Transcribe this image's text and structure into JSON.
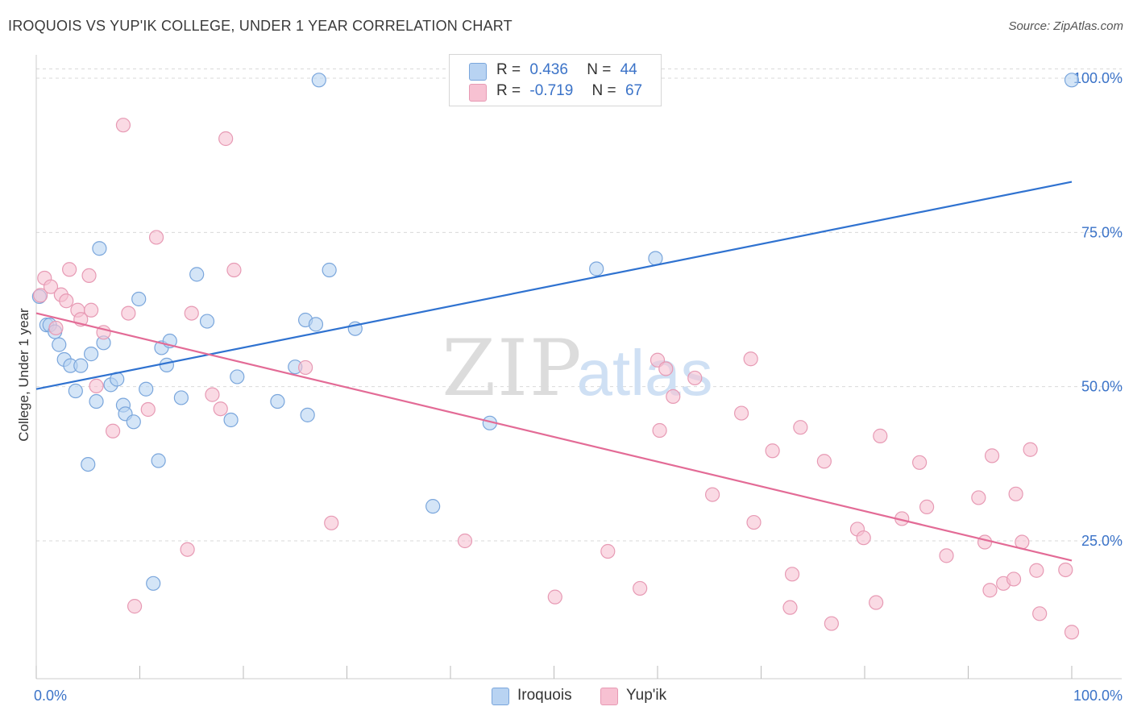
{
  "title": "IROQUOIS VS YUP'IK COLLEGE, UNDER 1 YEAR CORRELATION CHART",
  "source": "Source: ZipAtlas.com",
  "watermark": {
    "zip": "ZIP",
    "atlas": "atlas"
  },
  "legend": {
    "rows": [
      {
        "r_label": "R =",
        "r_value": "0.436",
        "n_label": "N =",
        "n_value": "44"
      },
      {
        "r_label": "R =",
        "r_value": "-0.719",
        "n_label": "N =",
        "n_value": "67"
      }
    ]
  },
  "colors": {
    "iroquois_fill": "#b8d3f2",
    "iroquois_line": "#2f72d0",
    "yupik_fill": "#f7c1d2",
    "yupik_line": "#e36b96",
    "axis_text": "#3b73c8",
    "grid": "#d9d9d9"
  },
  "chart_data": {
    "type": "scatter",
    "title": "IROQUOIS VS YUP'IK COLLEGE, UNDER 1 YEAR CORRELATION CHART",
    "xlabel": "",
    "ylabel": "College, Under 1 year",
    "xlim": [
      0,
      100
    ],
    "ylim": [
      0,
      102
    ],
    "x_tick_labels": [
      "0.0%",
      "100.0%"
    ],
    "y_ticks": [
      {
        "value": 25,
        "label": "25.0%"
      },
      {
        "value": 50,
        "label": "50.0%"
      },
      {
        "value": 75,
        "label": "75.0%"
      },
      {
        "value": 100,
        "label": "100.0%"
      }
    ],
    "grid": true,
    "legend_position": "bottom-center",
    "series": [
      {
        "name": "Iroquois",
        "color": "#b8d3f2",
        "edge": "#7aa6dc",
        "trend": {
          "x0": 0,
          "y0": 49.6,
          "x1": 100,
          "y1": 83.2,
          "color": "#2f72d0"
        },
        "points": [
          [
            0.3,
            64.6
          ],
          [
            1.0,
            60.0
          ],
          [
            1.3,
            60.0
          ],
          [
            1.8,
            58.9
          ],
          [
            2.2,
            56.8
          ],
          [
            2.7,
            54.4
          ],
          [
            3.3,
            53.4
          ],
          [
            3.8,
            49.3
          ],
          [
            4.3,
            53.4
          ],
          [
            5.0,
            37.4
          ],
          [
            5.3,
            55.3
          ],
          [
            5.8,
            47.6
          ],
          [
            6.1,
            72.4
          ],
          [
            6.5,
            57.1
          ],
          [
            7.2,
            50.3
          ],
          [
            7.8,
            51.2
          ],
          [
            8.4,
            47.0
          ],
          [
            8.6,
            45.6
          ],
          [
            9.4,
            44.3
          ],
          [
            9.9,
            64.2
          ],
          [
            10.6,
            49.6
          ],
          [
            11.3,
            18.1
          ],
          [
            11.8,
            38.0
          ],
          [
            12.1,
            56.3
          ],
          [
            12.6,
            53.5
          ],
          [
            12.9,
            57.4
          ],
          [
            14.0,
            48.2
          ],
          [
            15.5,
            68.2
          ],
          [
            16.5,
            60.6
          ],
          [
            18.8,
            44.6
          ],
          [
            19.4,
            51.6
          ],
          [
            23.3,
            47.6
          ],
          [
            25.0,
            53.2
          ],
          [
            26.0,
            60.8
          ],
          [
            26.2,
            45.4
          ],
          [
            27.0,
            60.1
          ],
          [
            27.3,
            99.7
          ],
          [
            28.3,
            68.9
          ],
          [
            30.8,
            59.4
          ],
          [
            38.3,
            30.6
          ],
          [
            43.8,
            44.1
          ],
          [
            54.1,
            69.1
          ],
          [
            59.8,
            70.8
          ],
          [
            100.0,
            99.7
          ]
        ]
      },
      {
        "name": "Yup'ik",
        "color": "#f7c1d2",
        "edge": "#e79ab4",
        "trend": {
          "x0": 0,
          "y0": 61.9,
          "x1": 100,
          "y1": 21.8,
          "color": "#e36b96"
        },
        "points": [
          [
            0.4,
            64.8
          ],
          [
            0.8,
            67.6
          ],
          [
            1.4,
            66.2
          ],
          [
            1.9,
            59.5
          ],
          [
            2.4,
            64.9
          ],
          [
            2.9,
            63.9
          ],
          [
            3.2,
            69.0
          ],
          [
            4.0,
            62.4
          ],
          [
            4.3,
            60.9
          ],
          [
            5.1,
            68.0
          ],
          [
            5.3,
            62.4
          ],
          [
            5.8,
            50.1
          ],
          [
            6.5,
            58.8
          ],
          [
            7.4,
            42.8
          ],
          [
            8.4,
            92.4
          ],
          [
            8.9,
            61.9
          ],
          [
            9.5,
            14.4
          ],
          [
            10.8,
            46.3
          ],
          [
            11.6,
            74.2
          ],
          [
            14.6,
            23.6
          ],
          [
            15.0,
            61.9
          ],
          [
            17.0,
            48.7
          ],
          [
            17.8,
            46.4
          ],
          [
            18.3,
            90.2
          ],
          [
            19.1,
            68.9
          ],
          [
            26.0,
            53.1
          ],
          [
            28.5,
            27.9
          ],
          [
            41.4,
            25.0
          ],
          [
            50.1,
            15.9
          ],
          [
            55.2,
            23.3
          ],
          [
            58.3,
            17.3
          ],
          [
            60.0,
            54.3
          ],
          [
            60.2,
            42.9
          ],
          [
            60.8,
            52.9
          ],
          [
            61.5,
            48.4
          ],
          [
            63.6,
            51.4
          ],
          [
            65.3,
            32.5
          ],
          [
            68.1,
            45.7
          ],
          [
            69.0,
            54.5
          ],
          [
            69.3,
            28.0
          ],
          [
            71.1,
            39.6
          ],
          [
            72.8,
            14.2
          ],
          [
            73.0,
            19.6
          ],
          [
            73.8,
            43.4
          ],
          [
            76.1,
            37.9
          ],
          [
            76.8,
            11.6
          ],
          [
            79.3,
            26.9
          ],
          [
            79.9,
            25.5
          ],
          [
            81.1,
            15.0
          ],
          [
            81.5,
            42.0
          ],
          [
            83.6,
            28.6
          ],
          [
            85.3,
            37.7
          ],
          [
            86.0,
            30.5
          ],
          [
            87.9,
            22.6
          ],
          [
            91.0,
            32.0
          ],
          [
            91.6,
            24.8
          ],
          [
            92.1,
            17.0
          ],
          [
            92.3,
            38.8
          ],
          [
            93.4,
            18.1
          ],
          [
            94.4,
            18.8
          ],
          [
            94.6,
            32.6
          ],
          [
            95.2,
            24.8
          ],
          [
            96.0,
            39.8
          ],
          [
            96.6,
            20.2
          ],
          [
            96.9,
            13.2
          ],
          [
            99.4,
            20.3
          ],
          [
            100.0,
            10.2
          ]
        ]
      }
    ]
  }
}
